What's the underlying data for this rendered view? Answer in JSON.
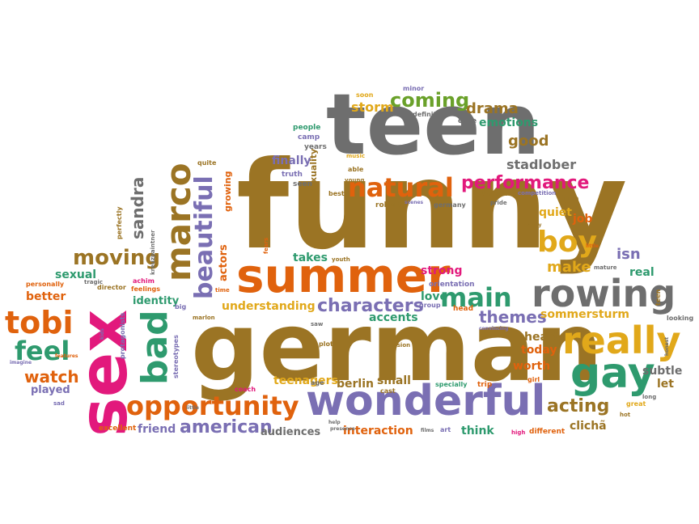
{
  "palette": {
    "brown": "#9b7424",
    "gray": "#6e6e6e",
    "orange": "#e0620d",
    "purple": "#7a6fb3",
    "green": "#2e9a6e",
    "yellow": "#e1a81a",
    "pink": "#e2197c",
    "lime": "#6aa12a",
    "olive": "#8e7d2c"
  },
  "words": {
    "funny": "funny",
    "german": "german",
    "teen": "teen",
    "summer": "summer",
    "wonderful": "wonderful",
    "sex": "sex",
    "rowing": "rowing",
    "really": "really",
    "gay": "gay",
    "opportunity": "opportunity",
    "natural": "natural",
    "marco": "marco",
    "bad": "bad",
    "beautiful": "beautiful",
    "performance": "performance",
    "boy": "boy",
    "coming": "coming",
    "main": "main",
    "characters": "characters",
    "tobi": "tobi",
    "feel": "feel",
    "moving": "moving",
    "american": "american",
    "drama": "drama",
    "emotions": "emotions",
    "good": "good",
    "stadlober": "stadlober",
    "themes": "themes",
    "watch": "watch",
    "acting": "acting",
    "storm": "storm",
    "sommersturm": "sommersturm",
    "make": "make",
    "sandra": "sandra",
    "understanding": "understanding",
    "strong": "strong",
    "love": "love",
    "accents": "accents",
    "isn": "isn",
    "real": "real",
    "subtle": "subtle",
    "let": "let",
    "clicha": "clichã",
    "heart": "heart",
    "today": "today",
    "worth": "worth",
    "teenagers": "teenagers",
    "berlin": "berlin",
    "small": "small",
    "interaction": "interaction",
    "audiences": "audiences",
    "friend": "friend",
    "think": "think",
    "fun": "fun",
    "quiet": "quiet",
    "job": "job",
    "takes": "takes",
    "sexual": "sexual",
    "better": "better",
    "identity": "identity",
    "played": "played",
    "excellent": "excellent",
    "finally": "finally",
    "people": "people",
    "camp": "camp",
    "years": "years",
    "dare": "dare",
    "definitely": "definitely",
    "soon": "soon",
    "minor": "minor",
    "truth": "truth",
    "seen": "seen",
    "sexuality": "sexuality",
    "robert": "robert",
    "germany": "germany",
    "touching": "touching",
    "competition": "competition",
    "pride": "pride",
    "music": "music",
    "able": "able",
    "best": "best",
    "scenes": "scenes",
    "growing": "growing",
    "actors": "actors",
    "quite": "quite",
    "perfectly": "perfectly",
    "kreuzpaintner": "kreuzpaintner",
    "achim": "achim",
    "director": "director",
    "tragic": "tragic",
    "feelings": "feelings",
    "personally": "personally",
    "big": "big",
    "time": "time",
    "marlon": "marlon",
    "fears": "fears",
    "youth": "youth",
    "orientation": "orientation",
    "group": "group",
    "head": "head",
    "convincing": "convincing",
    "looking": "looking",
    "honest": "honest",
    "mature": "mature",
    "little_word": "little",
    "teen_small": "teen",
    "long": "long",
    "great": "great",
    "girl": "girl",
    "high": "high",
    "different": "different",
    "specially": "specially",
    "trip": "trip",
    "cast": "cast",
    "age": "age",
    "coach": "coach",
    "stereotypes": "stereotypes",
    "features": "features",
    "protagonists": "protagonists",
    "kids": "kids",
    "imagine": "imagine",
    "sad": "sad",
    "saw": "saw",
    "plot": "plot",
    "version": "version",
    "presence": "presence",
    "help": "help",
    "films": "films",
    "art": "art",
    "young": "young",
    "story": "story",
    "little2": "little",
    "hot": "hot"
  }
}
